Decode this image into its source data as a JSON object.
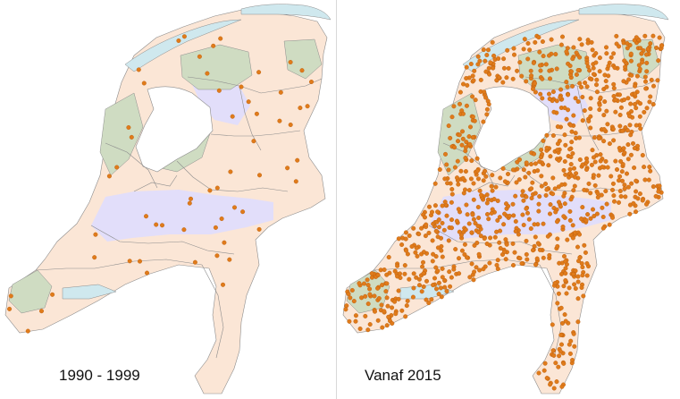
{
  "maps": [
    {
      "id": "map-1990-1999",
      "period_label": "1990 - 1999",
      "relative_observation_density": 0.1,
      "observation_count_estimate": 60
    },
    {
      "id": "map-vanaf-2015",
      "period_label": "Vanaf 2015",
      "relative_observation_density": 1.0,
      "observation_count_estimate": 1100
    }
  ],
  "colors": {
    "sea": "#cfe8ee",
    "mainland": "#fbe6d6",
    "river_zone": "#e2defa",
    "forest_zone": "#cfdcc2",
    "province_border": "#8c8c8c",
    "observation_dot": "#e07b1a",
    "observation_dot_border": "#b85c0c",
    "divider": "#d9d9d9"
  },
  "legend_visible": false
}
